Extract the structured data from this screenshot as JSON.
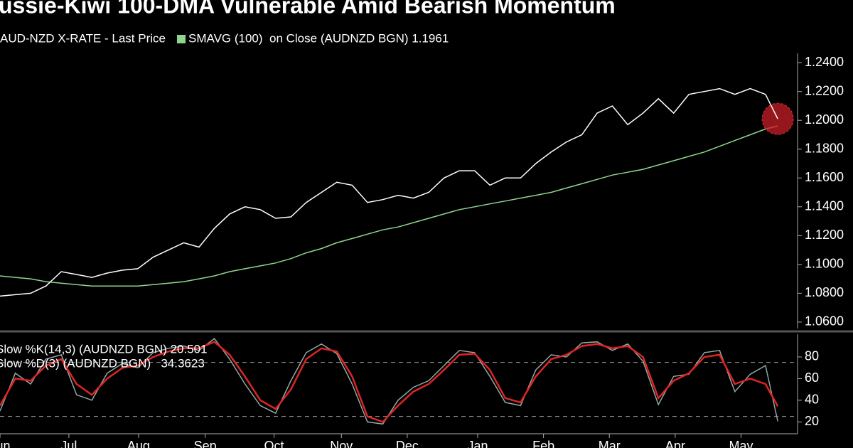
{
  "chart_data": [
    {
      "type": "line",
      "title": "ussie-Kiwi 100-DMA Vulnerable Amid Bearish Momentum",
      "x": [
        0,
        1,
        2,
        3,
        4,
        5,
        6,
        7,
        8,
        9,
        10,
        11,
        12,
        13,
        14,
        15,
        16,
        17,
        18,
        19,
        20,
        21,
        22,
        23,
        24,
        25,
        26,
        27,
        28,
        29,
        30,
        31,
        32,
        33,
        34,
        35,
        36,
        37,
        38,
        39,
        40,
        41,
        42,
        43,
        44,
        45,
        46,
        47,
        48,
        49,
        50,
        50.8
      ],
      "series": [
        {
          "name": "AUD-NZD X-RATE - Last Price",
          "color": "#ffffff",
          "values": [
            1.078,
            1.079,
            1.08,
            1.085,
            1.095,
            1.093,
            1.091,
            1.094,
            1.096,
            1.097,
            1.105,
            1.11,
            1.115,
            1.112,
            1.125,
            1.135,
            1.14,
            1.138,
            1.132,
            1.133,
            1.143,
            1.15,
            1.157,
            1.155,
            1.143,
            1.145,
            1.148,
            1.146,
            1.15,
            1.16,
            1.165,
            1.165,
            1.155,
            1.16,
            1.16,
            1.17,
            1.178,
            1.185,
            1.19,
            1.205,
            1.21,
            1.197,
            1.205,
            1.215,
            1.205,
            1.218,
            1.22,
            1.222,
            1.218,
            1.222,
            1.218,
            1.201
          ]
        },
        {
          "name": "SMAVG (100)  on Close (AUDNZD BGN) 1.1961",
          "color": "#8fd48f",
          "values": [
            1.092,
            1.091,
            1.09,
            1.088,
            1.087,
            1.086,
            1.085,
            1.085,
            1.085,
            1.085,
            1.086,
            1.087,
            1.088,
            1.09,
            1.092,
            1.095,
            1.097,
            1.099,
            1.101,
            1.104,
            1.108,
            1.111,
            1.115,
            1.118,
            1.121,
            1.124,
            1.126,
            1.129,
            1.132,
            1.135,
            1.138,
            1.14,
            1.142,
            1.144,
            1.146,
            1.148,
            1.15,
            1.153,
            1.156,
            1.159,
            1.162,
            1.164,
            1.166,
            1.169,
            1.172,
            1.175,
            1.178,
            1.182,
            1.186,
            1.19,
            1.194,
            1.1961
          ]
        }
      ],
      "xlim": [
        0,
        52
      ],
      "ylim": [
        1.0555,
        1.2465
      ],
      "yticks": [
        {
          "value": 1.06,
          "label": "1.0600"
        },
        {
          "value": 1.08,
          "label": "1.0800"
        },
        {
          "value": 1.1,
          "label": "1.1000"
        },
        {
          "value": 1.12,
          "label": "1.1200"
        },
        {
          "value": 1.14,
          "label": "1.1400"
        },
        {
          "value": 1.16,
          "label": "1.1600"
        },
        {
          "value": 1.18,
          "label": "1.1800"
        },
        {
          "value": 1.2,
          "label": "1.2000"
        },
        {
          "value": 1.22,
          "label": "1.2200"
        },
        {
          "value": 1.24,
          "label": "1.2400"
        }
      ]
    },
    {
      "type": "line",
      "x": [
        0,
        1,
        2,
        3,
        4,
        5,
        6,
        7,
        8,
        9,
        10,
        11,
        12,
        13,
        14,
        15,
        16,
        17,
        18,
        19,
        20,
        21,
        22,
        23,
        24,
        25,
        26,
        27,
        28,
        29,
        30,
        31,
        32,
        33,
        34,
        35,
        36,
        37,
        38,
        39,
        40,
        41,
        42,
        43,
        44,
        45,
        46,
        47,
        48,
        49,
        50,
        50.8
      ],
      "series": [
        {
          "name": "Slow %K(14,3) (AUDNZD BGN) 20.501",
          "color": "#8fa9a8",
          "values": [
            30,
            65,
            55,
            78,
            82,
            45,
            40,
            65,
            74,
            70,
            84,
            88,
            90,
            86,
            97,
            78,
            55,
            35,
            28,
            58,
            84,
            92,
            83,
            55,
            20,
            18,
            40,
            52,
            58,
            72,
            86,
            84,
            62,
            38,
            35,
            68,
            82,
            80,
            93,
            94,
            86,
            92,
            76,
            36,
            62,
            64,
            84,
            86,
            48,
            64,
            72,
            20.501
          ]
        },
        {
          "name": "Slow %D(3) (AUDNZD BGN)   34.3623",
          "color": "#e02424",
          "values": [
            35,
            60,
            58,
            72,
            78,
            55,
            45,
            60,
            70,
            72,
            80,
            85,
            88,
            88,
            94,
            82,
            62,
            40,
            32,
            50,
            78,
            88,
            85,
            62,
            25,
            20,
            35,
            48,
            55,
            68,
            82,
            83,
            68,
            42,
            38,
            62,
            78,
            82,
            90,
            92,
            88,
            90,
            80,
            42,
            58,
            65,
            80,
            82,
            55,
            60,
            55,
            34.3623
          ]
        }
      ],
      "xlim": [
        0,
        52
      ],
      "ylim": [
        9,
        101
      ],
      "yticks": [
        20,
        40,
        60,
        80
      ],
      "dashed_levels": [
        25,
        75
      ],
      "xticks": [
        {
          "value": 0,
          "label": "Jun"
        },
        {
          "value": 4.5,
          "label": "Jul"
        },
        {
          "value": 9.05,
          "label": "Aug"
        },
        {
          "value": 13.4,
          "label": "Sep"
        },
        {
          "value": 17.9,
          "label": "Oct"
        },
        {
          "value": 22.3,
          "label": "Nov"
        },
        {
          "value": 26.6,
          "label": "Dec"
        },
        {
          "value": 31.2,
          "label": "Jan"
        },
        {
          "value": 35.5,
          "label": "Feb"
        },
        {
          "value": 39.8,
          "label": "Mar"
        },
        {
          "value": 44.1,
          "label": "Apr"
        },
        {
          "value": 48.4,
          "label": "May"
        }
      ]
    }
  ]
}
